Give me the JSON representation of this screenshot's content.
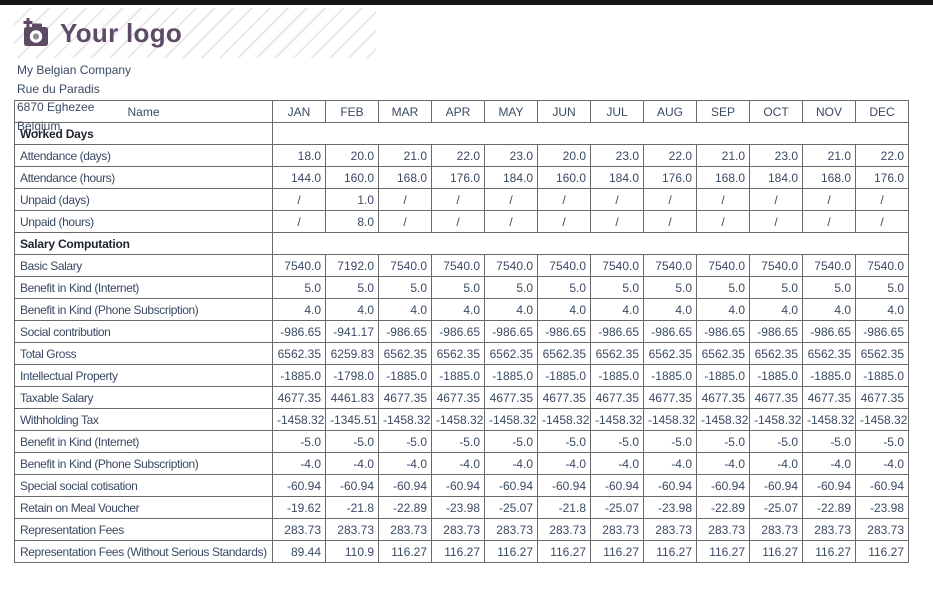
{
  "logo": {
    "text": "Your logo",
    "color": "#5d4b66",
    "icon": "camera-plus-icon"
  },
  "company": {
    "lines": [
      "My Belgian Company",
      "Rue du Paradis",
      "6870 Eghezee",
      "Belgium"
    ]
  },
  "table": {
    "name_header": "Name",
    "months": [
      "JAN",
      "FEB",
      "MAR",
      "APR",
      "MAY",
      "JUN",
      "JUL",
      "AUG",
      "SEP",
      "OCT",
      "NOV",
      "DEC"
    ],
    "rows": [
      {
        "type": "section",
        "label": "Worked Days"
      },
      {
        "type": "data",
        "label": "Attendance (days)",
        "values": [
          "18.0",
          "20.0",
          "21.0",
          "22.0",
          "23.0",
          "20.0",
          "23.0",
          "22.0",
          "21.0",
          "23.0",
          "21.0",
          "22.0"
        ]
      },
      {
        "type": "data",
        "label": "Attendance (hours)",
        "values": [
          "144.0",
          "160.0",
          "168.0",
          "176.0",
          "184.0",
          "160.0",
          "184.0",
          "176.0",
          "168.0",
          "184.0",
          "168.0",
          "176.0"
        ]
      },
      {
        "type": "data",
        "label": "Unpaid (days)",
        "values": [
          "/",
          "1.0",
          "/",
          "/",
          "/",
          "/",
          "/",
          "/",
          "/",
          "/",
          "/",
          "/"
        ]
      },
      {
        "type": "data",
        "label": "Unpaid (hours)",
        "values": [
          "/",
          "8.0",
          "/",
          "/",
          "/",
          "/",
          "/",
          "/",
          "/",
          "/",
          "/",
          "/"
        ]
      },
      {
        "type": "section",
        "label": "Salary Computation"
      },
      {
        "type": "data",
        "label": "Basic Salary",
        "values": [
          "7540.0",
          "7192.0",
          "7540.0",
          "7540.0",
          "7540.0",
          "7540.0",
          "7540.0",
          "7540.0",
          "7540.0",
          "7540.0",
          "7540.0",
          "7540.0"
        ]
      },
      {
        "type": "data",
        "label": "Benefit in Kind (Internet)",
        "values": [
          "5.0",
          "5.0",
          "5.0",
          "5.0",
          "5.0",
          "5.0",
          "5.0",
          "5.0",
          "5.0",
          "5.0",
          "5.0",
          "5.0"
        ]
      },
      {
        "type": "data",
        "label": "Benefit in Kind (Phone Subscription)",
        "values": [
          "4.0",
          "4.0",
          "4.0",
          "4.0",
          "4.0",
          "4.0",
          "4.0",
          "4.0",
          "4.0",
          "4.0",
          "4.0",
          "4.0"
        ]
      },
      {
        "type": "data",
        "label": "Social contribution",
        "values": [
          "-986.65",
          "-941.17",
          "-986.65",
          "-986.65",
          "-986.65",
          "-986.65",
          "-986.65",
          "-986.65",
          "-986.65",
          "-986.65",
          "-986.65",
          "-986.65"
        ]
      },
      {
        "type": "data",
        "label": "Total Gross",
        "values": [
          "6562.35",
          "6259.83",
          "6562.35",
          "6562.35",
          "6562.35",
          "6562.35",
          "6562.35",
          "6562.35",
          "6562.35",
          "6562.35",
          "6562.35",
          "6562.35"
        ]
      },
      {
        "type": "data",
        "label": "Intellectual Property",
        "values": [
          "-1885.0",
          "-1798.0",
          "-1885.0",
          "-1885.0",
          "-1885.0",
          "-1885.0",
          "-1885.0",
          "-1885.0",
          "-1885.0",
          "-1885.0",
          "-1885.0",
          "-1885.0"
        ]
      },
      {
        "type": "data",
        "label": "Taxable Salary",
        "values": [
          "4677.35",
          "4461.83",
          "4677.35",
          "4677.35",
          "4677.35",
          "4677.35",
          "4677.35",
          "4677.35",
          "4677.35",
          "4677.35",
          "4677.35",
          "4677.35"
        ]
      },
      {
        "type": "data",
        "label": "Withholding Tax",
        "values": [
          "-1458.32",
          "-1345.51",
          "-1458.32",
          "-1458.32",
          "-1458.32",
          "-1458.32",
          "-1458.32",
          "-1458.32",
          "-1458.32",
          "-1458.32",
          "-1458.32",
          "-1458.32"
        ]
      },
      {
        "type": "data",
        "label": "Benefit in Kind (Internet)",
        "values": [
          "-5.0",
          "-5.0",
          "-5.0",
          "-5.0",
          "-5.0",
          "-5.0",
          "-5.0",
          "-5.0",
          "-5.0",
          "-5.0",
          "-5.0",
          "-5.0"
        ]
      },
      {
        "type": "data",
        "label": "Benefit in Kind (Phone Subscription)",
        "values": [
          "-4.0",
          "-4.0",
          "-4.0",
          "-4.0",
          "-4.0",
          "-4.0",
          "-4.0",
          "-4.0",
          "-4.0",
          "-4.0",
          "-4.0",
          "-4.0"
        ]
      },
      {
        "type": "data",
        "label": "Special social cotisation",
        "values": [
          "-60.94",
          "-60.94",
          "-60.94",
          "-60.94",
          "-60.94",
          "-60.94",
          "-60.94",
          "-60.94",
          "-60.94",
          "-60.94",
          "-60.94",
          "-60.94"
        ]
      },
      {
        "type": "data",
        "label": "Retain on Meal Voucher",
        "values": [
          "-19.62",
          "-21.8",
          "-22.89",
          "-23.98",
          "-25.07",
          "-21.8",
          "-25.07",
          "-23.98",
          "-22.89",
          "-25.07",
          "-22.89",
          "-23.98"
        ]
      },
      {
        "type": "data",
        "label": "Representation Fees",
        "values": [
          "283.73",
          "283.73",
          "283.73",
          "283.73",
          "283.73",
          "283.73",
          "283.73",
          "283.73",
          "283.73",
          "283.73",
          "283.73",
          "283.73"
        ]
      },
      {
        "type": "data",
        "label": "Representation Fees (Without Serious Standards)",
        "values": [
          "89.44",
          "110.9",
          "116.27",
          "116.27",
          "116.27",
          "116.27",
          "116.27",
          "116.27",
          "116.27",
          "116.27",
          "116.27",
          "116.27"
        ]
      }
    ]
  },
  "colors": {
    "text": "#3a4a63",
    "section_text": "#1e2430",
    "border": "#686868",
    "logo_purple": "#5d4b66",
    "topbar": "#171717"
  }
}
